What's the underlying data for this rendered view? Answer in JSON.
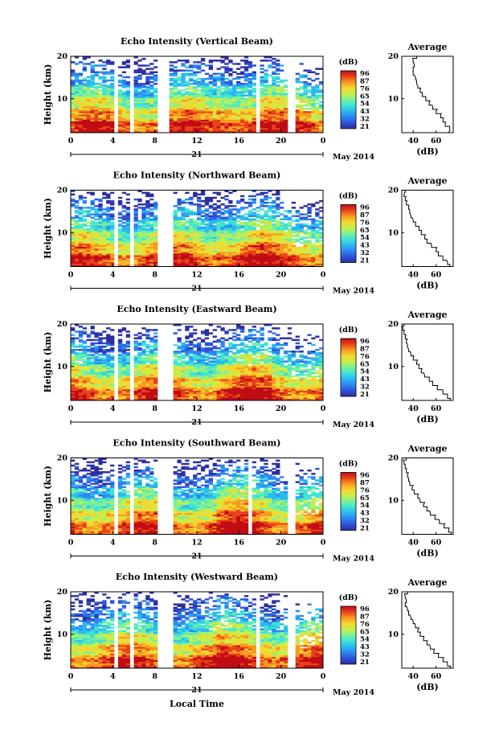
{
  "common": {
    "x_ticks": [
      "0",
      "4",
      "8",
      "12",
      "16",
      "20",
      "0"
    ],
    "y_ticks": [
      "20",
      "10"
    ],
    "ylabel": "Height (km)",
    "date_day": "21",
    "date_month": "May 2014",
    "colorbar_unit": "(dB)",
    "average_title": "Average",
    "average_xlabel": "(dB)",
    "average_y_ticks": [
      "20",
      "10"
    ]
  },
  "footer": {
    "xlabel": "Local Time"
  },
  "colormap": [
    "#2c2fa0",
    "#2f52d8",
    "#2d86f0",
    "#2bb8f0",
    "#3ee3d6",
    "#7af09a",
    "#c7ef4a",
    "#f6d531",
    "#f79a20",
    "#e8431a",
    "#c00d14"
  ],
  "panels": [
    {
      "title": "Echo Intensity (Vertical Beam)",
      "colorbar_ticks": [
        "96",
        "87",
        "76",
        "65",
        "54",
        "43",
        "32",
        "21"
      ],
      "average_x_ticks": [
        "40",
        "60"
      ],
      "chart_data": {
        "type": "heatmap",
        "title": "Echo Intensity (Vertical Beam)",
        "xlabel": "Local Time",
        "ylabel": "Height (km)",
        "xlim": [
          0,
          24
        ],
        "ylim": [
          2,
          20
        ],
        "colorbar_range": [
          21,
          96
        ],
        "data_gaps_hours": [
          [
            4.2,
            4.6
          ],
          [
            5.6,
            6.0
          ],
          [
            8.2,
            9.3
          ],
          [
            17.8,
            18.1
          ],
          [
            20.8,
            21.3
          ]
        ],
        "average_profile": {
          "height_km": [
            2,
            3,
            4,
            5,
            6,
            7,
            8,
            9,
            10,
            11,
            12,
            13,
            14,
            15,
            16,
            17,
            18,
            19,
            20
          ],
          "db": [
            71,
            72,
            68,
            66,
            64,
            60,
            57,
            54,
            51,
            48,
            46,
            44,
            43,
            42,
            40,
            40,
            41,
            40,
            43
          ]
        }
      }
    },
    {
      "title": "Echo Intensity (Northward Beam)",
      "colorbar_ticks": [
        "96",
        "87",
        "76",
        "65",
        "54",
        "43",
        "32",
        "21"
      ],
      "average_x_ticks": [
        "40",
        "60"
      ],
      "chart_data": {
        "type": "heatmap",
        "title": "Echo Intensity (Northward Beam)",
        "xlabel": "Local Time",
        "ylabel": "Height (km)",
        "xlim": [
          0,
          24
        ],
        "ylim": [
          2,
          20
        ],
        "colorbar_range": [
          21,
          96
        ],
        "data_gaps_hours": [
          [
            4.2,
            4.6
          ],
          [
            5.6,
            6.0
          ],
          [
            8.2,
            9.8
          ]
        ],
        "average_profile": {
          "height_km": [
            2,
            3,
            4,
            5,
            6,
            7,
            8,
            9,
            10,
            11,
            12,
            13,
            14,
            15,
            16,
            17,
            18,
            19,
            20
          ],
          "db": [
            72,
            70,
            66,
            62,
            60,
            56,
            52,
            50,
            47,
            45,
            42,
            40,
            38,
            37,
            36,
            34,
            33,
            32,
            33
          ]
        }
      }
    },
    {
      "title": "Echo Intensity (Eastward Beam)",
      "colorbar_ticks": [
        "96",
        "87",
        "76",
        "65",
        "54",
        "43",
        "32",
        "21"
      ],
      "average_x_ticks": [
        "40",
        "60"
      ],
      "chart_data": {
        "type": "heatmap",
        "title": "Echo Intensity (Eastward Beam)",
        "xlabel": "Local Time",
        "ylabel": "Height (km)",
        "xlim": [
          0,
          24
        ],
        "ylim": [
          2,
          20
        ],
        "colorbar_range": [
          21,
          96
        ],
        "data_gaps_hours": [
          [
            4.2,
            4.6
          ],
          [
            5.6,
            6.0
          ],
          [
            8.2,
            9.8
          ]
        ],
        "average_profile": {
          "height_km": [
            2,
            3,
            4,
            5,
            6,
            7,
            8,
            9,
            10,
            11,
            12,
            13,
            14,
            15,
            16,
            17,
            18,
            19,
            20
          ],
          "db": [
            72,
            70,
            66,
            61,
            57,
            54,
            50,
            47,
            45,
            43,
            40,
            38,
            36,
            35,
            34,
            33,
            32,
            31,
            32
          ]
        }
      }
    },
    {
      "title": "Echo Intensity (Southward Beam)",
      "colorbar_ticks": [
        "96",
        "87",
        "76",
        "65",
        "54",
        "43",
        "32",
        "21"
      ],
      "average_x_ticks": [
        "40",
        "60"
      ],
      "chart_data": {
        "type": "heatmap",
        "title": "Echo Intensity (Southward Beam)",
        "xlabel": "Local Time",
        "ylabel": "Height (km)",
        "xlim": [
          0,
          24
        ],
        "ylim": [
          2,
          20
        ],
        "colorbar_range": [
          21,
          96
        ],
        "data_gaps_hours": [
          [
            4.2,
            4.6
          ],
          [
            5.6,
            6.0
          ],
          [
            8.2,
            9.8
          ],
          [
            17.0,
            17.4
          ],
          [
            20.6,
            21.2
          ]
        ],
        "average_profile": {
          "height_km": [
            2,
            3,
            4,
            5,
            6,
            7,
            8,
            9,
            10,
            11,
            12,
            13,
            14,
            15,
            16,
            17,
            18,
            19,
            20
          ],
          "db": [
            73,
            71,
            67,
            63,
            59,
            55,
            52,
            49,
            46,
            44,
            41,
            39,
            37,
            36,
            35,
            34,
            33,
            32,
            34
          ]
        }
      }
    },
    {
      "title": "Echo Intensity (Westward Beam)",
      "colorbar_ticks": [
        "96",
        "87",
        "76",
        "65",
        "54",
        "43",
        "32",
        "21"
      ],
      "average_x_ticks": [
        "40",
        "60"
      ],
      "chart_data": {
        "type": "heatmap",
        "title": "Echo Intensity (Westward Beam)",
        "xlabel": "Local Time",
        "ylabel": "Height (km)",
        "xlim": [
          0,
          24
        ],
        "ylim": [
          2,
          20
        ],
        "colorbar_range": [
          21,
          96
        ],
        "data_gaps_hours": [
          [
            4.2,
            4.6
          ],
          [
            5.6,
            6.0
          ],
          [
            8.2,
            9.8
          ],
          [
            17.8,
            18.1
          ],
          [
            20.8,
            21.3
          ]
        ],
        "average_profile": {
          "height_km": [
            2,
            3,
            4,
            5,
            6,
            7,
            8,
            9,
            10,
            11,
            12,
            13,
            14,
            15,
            16,
            17,
            18,
            19,
            20
          ],
          "db": [
            72,
            70,
            66,
            62,
            58,
            55,
            52,
            49,
            46,
            44,
            42,
            40,
            38,
            36,
            35,
            33,
            34,
            33,
            35
          ]
        }
      }
    }
  ]
}
